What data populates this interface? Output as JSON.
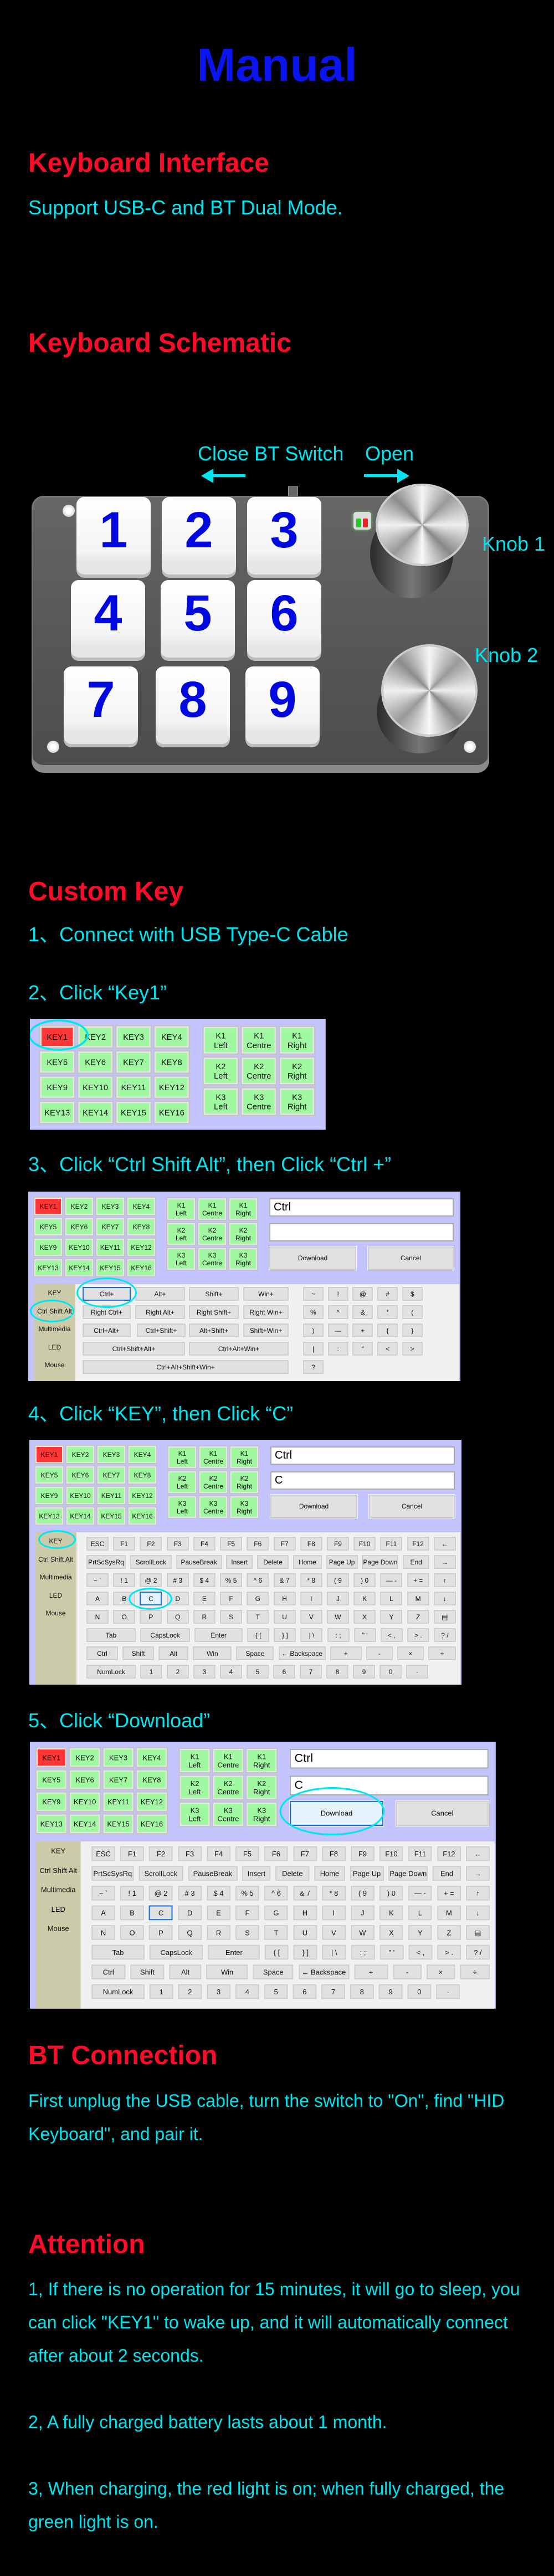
{
  "title": "Manual",
  "colors": {
    "title": "#0a14f0",
    "heading": "#ff0a28",
    "text": "#00e6f0",
    "panel_bg": "#c3c3fd",
    "key_green": "#a0f8a0",
    "key_active": "#ff3636"
  },
  "interface": {
    "heading": "Keyboard Interface",
    "text": "Support USB-C and BT Dual Mode."
  },
  "schematic": {
    "heading": "Keyboard Schematic",
    "switch_close": "Close BT Switch",
    "switch_open": "Open",
    "keys": [
      "1",
      "2",
      "3",
      "4",
      "5",
      "6",
      "7",
      "8",
      "9"
    ],
    "knob1": "Knob 1",
    "knob2": "Knob 2"
  },
  "custom": {
    "heading": "Custom Key",
    "step1": "1、Connect with USB Type-C Cable",
    "step2": "2、Click “Key1”",
    "step3": "3、Click “Ctrl Shift Alt”, then Click “Ctrl +”",
    "step4": "4、Click “KEY”, then Click “C”",
    "step5": "5、Click “Download”"
  },
  "app": {
    "keys": [
      "KEY1",
      "KEY2",
      "KEY3",
      "KEY4",
      "KEY5",
      "KEY6",
      "KEY7",
      "KEY8",
      "KEY9",
      "KEY10",
      "KEY11",
      "KEY12",
      "KEY13",
      "KEY14",
      "KEY15",
      "KEY16"
    ],
    "knob_buttons": [
      [
        "K1",
        "Left"
      ],
      [
        "K1",
        "Centre"
      ],
      [
        "K1",
        "Right"
      ],
      [
        "K2",
        "Left"
      ],
      [
        "K2",
        "Centre"
      ],
      [
        "K2",
        "Right"
      ],
      [
        "K3",
        "Left"
      ],
      [
        "K3",
        "Centre"
      ],
      [
        "K3",
        "Right"
      ]
    ],
    "download": "Download",
    "cancel": "Cancel",
    "sidebar": [
      "KEY",
      "Ctrl Shift Alt",
      "Multimedia",
      "LED",
      "Mouse"
    ],
    "modifiers": [
      [
        "Ctrl+",
        "Alt+",
        "Shift+",
        "Win+"
      ],
      [
        "Right  Ctrl+",
        "Right Alt+",
        "Right Shift+",
        "Right Win+"
      ],
      [
        "Ctrl+Alt+",
        "Ctrl+Shift+",
        "Alt+Shift+",
        "Shift+Win+"
      ],
      [
        "Ctrl+Shift+Alt+",
        "Ctrl+Alt+Win+"
      ],
      [
        "Ctrl+Alt+Shift+Win+"
      ]
    ],
    "symbols": [
      [
        "~",
        "!",
        "@",
        "#",
        "$"
      ],
      [
        "%",
        "^",
        "&",
        "*",
        "("
      ],
      [
        ")",
        "—",
        "+",
        "{",
        "}"
      ],
      [
        "|",
        ":",
        "\"",
        "<",
        ">"
      ],
      [
        "?"
      ]
    ],
    "keyboard": [
      [
        "ESC",
        "F1",
        "F2",
        "F3",
        "F4",
        "F5",
        "F6",
        "F7",
        "F8",
        "F9",
        "F10",
        "F11",
        "F12",
        "←"
      ],
      [
        "PrtScSysRq",
        "ScrollLock",
        "PauseBreak",
        "Insert",
        "Delete",
        "Home",
        "Page Up",
        "Page Down",
        "End",
        "→"
      ],
      [
        "~ `",
        "! 1",
        "@ 2",
        "# 3",
        "$ 4",
        "% 5",
        "^ 6",
        "& 7",
        "* 8",
        "( 9",
        ") 0",
        "— -",
        "+ =",
        "↑"
      ],
      [
        "A",
        "B",
        "C",
        "D",
        "E",
        "F",
        "G",
        "H",
        "I",
        "J",
        "K",
        "L",
        "M",
        "↓"
      ],
      [
        "N",
        "O",
        "P",
        "Q",
        "R",
        "S",
        "T",
        "U",
        "V",
        "W",
        "X",
        "Y",
        "Z",
        "▤"
      ],
      [
        "Tab",
        "CapsLock",
        "Enter",
        "{ [",
        "} ]",
        "| \\",
        ": ;",
        "\" '",
        "< ,",
        "> .",
        "? /"
      ],
      [
        "Ctrl",
        "Shift",
        "Alt",
        "Win",
        "Space",
        "← Backspace",
        "+",
        "-",
        "×",
        "÷"
      ],
      [
        "NumLock",
        "1",
        "2",
        "3",
        "4",
        "5",
        "6",
        "7",
        "8",
        "9",
        "0",
        "·"
      ]
    ]
  },
  "panels": [
    {
      "mode": "keys-only",
      "active_key": "KEY1"
    },
    {
      "mode": "modifiers",
      "active_key": "KEY1",
      "input1": "Ctrl",
      "input2": "",
      "selected_button": "Ctrl+"
    },
    {
      "mode": "keyboard",
      "active_key": "KEY1",
      "input1": "Ctrl",
      "input2": "C",
      "selected_button": "C",
      "selected_style": "hot"
    },
    {
      "mode": "keyboard",
      "active_key": "KEY1",
      "input1": "Ctrl",
      "input2": "C",
      "selected_button": "C",
      "selected_style": "sel",
      "download_hot": true
    }
  ],
  "bt": {
    "heading": "BT Connection",
    "text": "First unplug the USB cable, turn the switch to \"On\", find \"HID Keyboard\", and pair it."
  },
  "attention": {
    "heading": "Attention",
    "items": [
      "1, If there is no operation for 15 minutes, it will go to sleep, you can click \"KEY1\" to wake up, and it will automatically connect after about 2 seconds.",
      "2, A fully charged battery lasts about 1 month.",
      "3, When charging, the red light is on; when fully charged, the green light is on."
    ]
  }
}
